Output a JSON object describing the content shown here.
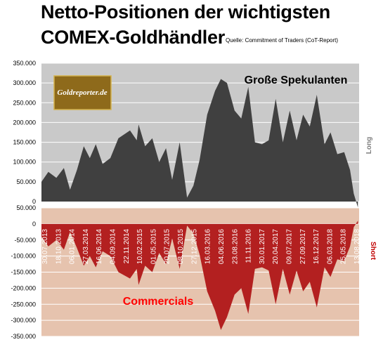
{
  "header": {
    "title_line1": "Netto-Positionen der wichtigsten",
    "title_line2": "COMEX-Goldhändler",
    "source": "Quelle: Commitment of Traders (CoT-Report)"
  },
  "logo": {
    "text": "Goldreporter.de"
  },
  "colors": {
    "top_plot_bg": "#c9c9c9",
    "top_area": "#404040",
    "bottom_plot_bg": "#e6c3ae",
    "bottom_area": "#b32020",
    "logo_bg": "#8e6a1b",
    "short_label": "#c00000",
    "long_label": "#7f7f7f"
  },
  "chart_data": [
    {
      "type": "area",
      "annotation": "Große Spekulanten",
      "side_label": "Long",
      "grid": true,
      "ylim": [
        0,
        350000
      ],
      "yticks": [
        {
          "value": 0,
          "label": "0"
        },
        {
          "value": 50000,
          "label": "50.000"
        },
        {
          "value": 100000,
          "label": "100.000"
        },
        {
          "value": 150000,
          "label": "150.000"
        },
        {
          "value": 200000,
          "label": "200.000"
        },
        {
          "value": 250000,
          "label": "250.000"
        },
        {
          "value": 300000,
          "label": "300.000"
        },
        {
          "value": 350000,
          "label": "350.000"
        }
      ],
      "x_dates": [
        "2013-07-23",
        "2013-09-01",
        "2013-10-18",
        "2013-12-01",
        "2014-01-06",
        "2014-02-15",
        "2014-03-27",
        "2014-05-01",
        "2014-06-05",
        "2014-07-15",
        "2014-08-29",
        "2014-10-15",
        "2014-12-22",
        "2015-01-30",
        "2015-02-10",
        "2015-03-20",
        "2015-05-01",
        "2015-06-10",
        "2015-07-20",
        "2015-08-25",
        "2015-10-08",
        "2015-11-20",
        "2015-12-27",
        "2016-02-01",
        "2016-03-16",
        "2016-05-01",
        "2016-06-04",
        "2016-07-10",
        "2016-08-23",
        "2016-10-01",
        "2016-11-11",
        "2016-12-20",
        "2017-01-30",
        "2017-03-10",
        "2017-04-20",
        "2017-06-01",
        "2017-07-11",
        "2017-08-20",
        "2017-09-27",
        "2017-11-05",
        "2017-12-16",
        "2018-01-30",
        "2018-03-06",
        "2018-04-15",
        "2018-05-25",
        "2018-06-28",
        "2018-07-20",
        "2018-08-13"
      ],
      "values": [
        50000,
        75000,
        60000,
        85000,
        30000,
        80000,
        140000,
        110000,
        145000,
        95000,
        110000,
        160000,
        180000,
        155000,
        195000,
        140000,
        160000,
        100000,
        135000,
        55000,
        150000,
        10000,
        40000,
        105000,
        220000,
        280000,
        310000,
        300000,
        230000,
        210000,
        290000,
        150000,
        145000,
        155000,
        260000,
        150000,
        230000,
        155000,
        220000,
        190000,
        270000,
        145000,
        175000,
        120000,
        125000,
        80000,
        20000,
        -15000
      ]
    },
    {
      "type": "area",
      "annotation": "Commercials",
      "side_label": "Short",
      "grid": true,
      "ylim": [
        -350000,
        50000
      ],
      "yticks": [
        {
          "value": 50000,
          "label": "50.000"
        },
        {
          "value": 0,
          "label": "0"
        },
        {
          "value": -50000,
          "label": "-50.000"
        },
        {
          "value": -100000,
          "label": "-100.000"
        },
        {
          "value": -150000,
          "label": "-150.000"
        },
        {
          "value": -200000,
          "label": "-200.000"
        },
        {
          "value": -250000,
          "label": "-250.000"
        },
        {
          "value": -300000,
          "label": "-300.000"
        },
        {
          "value": -350000,
          "label": "-350.000"
        }
      ],
      "xtick_labels": [
        "30.07.2013",
        "18.10.2013",
        "06.01.2014",
        "27.03.2014",
        "16.06.2014",
        "04.09.2014",
        "22.11.2014",
        "10.02.2015",
        "01.05.2015",
        "20.07.2015",
        "08.10.2015",
        "27.12.2015",
        "16.03.2016",
        "04.06.2016",
        "23.08.2016",
        "11.11.2016",
        "30.01.2017",
        "20.04.2017",
        "09.07.2017",
        "27.09.2017",
        "16.12.2017",
        "06.03.2018",
        "25.05.2018",
        "13.08.2018"
      ],
      "x_dates": [
        "2013-07-23",
        "2013-09-01",
        "2013-10-18",
        "2013-12-01",
        "2014-01-06",
        "2014-02-15",
        "2014-03-27",
        "2014-05-01",
        "2014-06-05",
        "2014-07-15",
        "2014-08-29",
        "2014-10-15",
        "2014-12-22",
        "2015-01-30",
        "2015-02-10",
        "2015-03-20",
        "2015-05-01",
        "2015-06-10",
        "2015-07-20",
        "2015-08-25",
        "2015-10-08",
        "2015-11-20",
        "2015-12-27",
        "2016-02-01",
        "2016-03-16",
        "2016-05-01",
        "2016-06-04",
        "2016-07-10",
        "2016-08-23",
        "2016-10-01",
        "2016-11-11",
        "2016-12-20",
        "2017-01-30",
        "2017-03-10",
        "2017-04-20",
        "2017-06-01",
        "2017-07-11",
        "2017-08-20",
        "2017-09-27",
        "2017-11-05",
        "2017-12-16",
        "2018-01-30",
        "2018-03-06",
        "2018-04-15",
        "2018-05-25",
        "2018-06-28",
        "2018-07-20",
        "2018-08-13"
      ],
      "values": [
        -40000,
        -70000,
        -50000,
        -80000,
        -25000,
        -75000,
        -130000,
        -100000,
        -135000,
        -85000,
        -100000,
        -150000,
        -170000,
        -140000,
        -190000,
        -130000,
        -150000,
        -90000,
        -125000,
        -45000,
        -140000,
        -5000,
        -30000,
        -95000,
        -210000,
        -270000,
        -330000,
        -290000,
        -220000,
        -200000,
        -280000,
        -140000,
        -135000,
        -145000,
        -250000,
        -140000,
        -220000,
        -145000,
        -210000,
        -180000,
        -260000,
        -135000,
        -165000,
        -110000,
        -115000,
        -70000,
        -10000,
        10000
      ]
    }
  ]
}
